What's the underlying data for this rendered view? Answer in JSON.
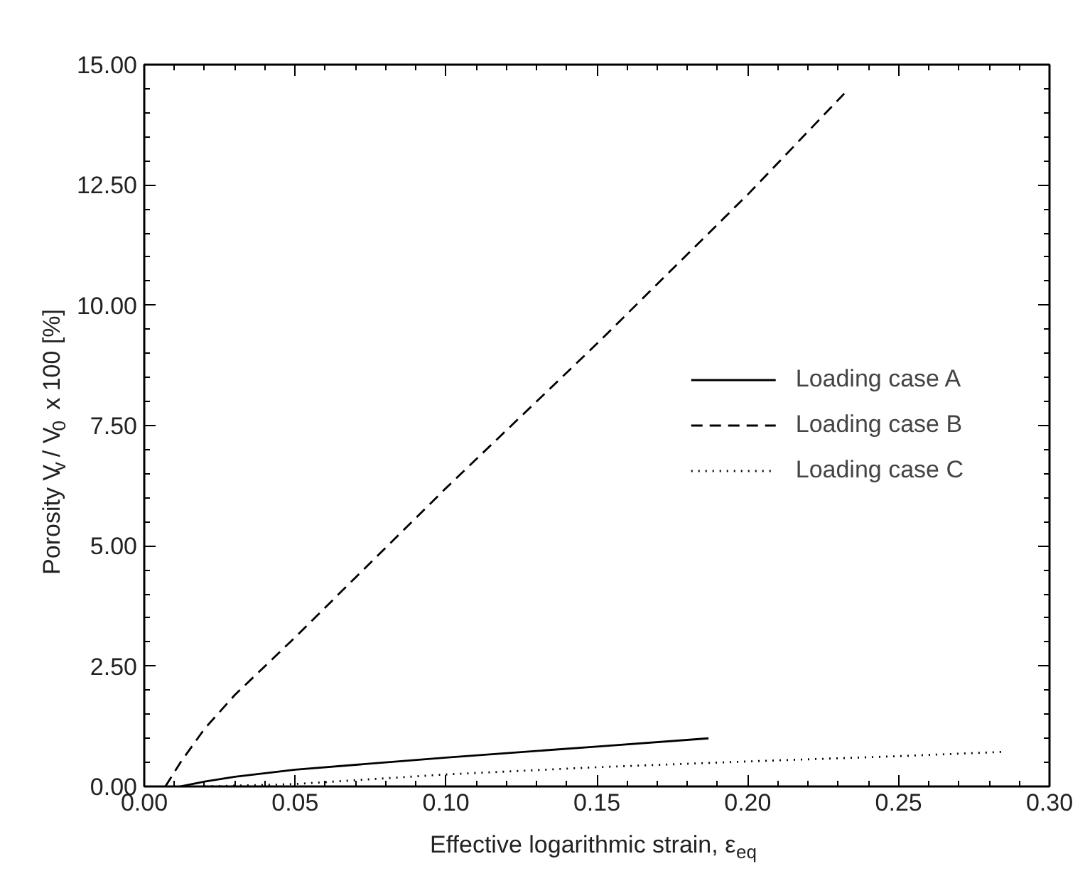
{
  "chart_data": {
    "type": "line",
    "xlabel": "Effective logarithmic strain, ε$_{eq}$",
    "ylabel": "Porosity  V$_{v}$ / V$_{0}$  x 100 [%]",
    "xlim": [
      0,
      0.3
    ],
    "ylim": [
      0,
      15
    ],
    "xticks": [
      {
        "value": 0,
        "label": "0.00"
      },
      {
        "value": 0.05,
        "label": "0.05"
      },
      {
        "value": 0.1,
        "label": "0.10"
      },
      {
        "value": 0.15,
        "label": "0.15"
      },
      {
        "value": 0.2,
        "label": "0.20"
      },
      {
        "value": 0.25,
        "label": "0.25"
      },
      {
        "value": 0.3,
        "label": "0.30"
      }
    ],
    "yticks": [
      {
        "value": 0,
        "label": "0.00"
      },
      {
        "value": 2.5,
        "label": "2.50"
      },
      {
        "value": 5,
        "label": "5.00"
      },
      {
        "value": 7.5,
        "label": "7.50"
      },
      {
        "value": 10,
        "label": "10.00"
      },
      {
        "value": 12.5,
        "label": "12.50"
      },
      {
        "value": 15,
        "label": "15.00"
      }
    ],
    "grid": false,
    "legend": "right",
    "marker": "none",
    "series": [
      {
        "name": "Loading case A",
        "color": "#000000",
        "line_style": "solid",
        "x": [
          0.012,
          0.02,
          0.03,
          0.05,
          0.1,
          0.15,
          0.187
        ],
        "values": [
          0,
          0.1,
          0.2,
          0.35,
          0.6,
          0.83,
          1.0
        ]
      },
      {
        "name": "Loading case B",
        "color": "#000000",
        "line_style": "dashed",
        "x": [
          0.007,
          0.012,
          0.02,
          0.03,
          0.05,
          0.1,
          0.15,
          0.2,
          0.232
        ],
        "values": [
          0,
          0.5,
          1.2,
          1.9,
          3.1,
          6.2,
          9.2,
          12.3,
          14.4
        ]
      },
      {
        "name": "Loading case C",
        "color": "#000000",
        "line_style": "dotted",
        "x": [
          0.02,
          0.05,
          0.1,
          0.15,
          0.2,
          0.25,
          0.285
        ],
        "values": [
          0,
          0.05,
          0.25,
          0.4,
          0.52,
          0.63,
          0.72
        ]
      }
    ]
  }
}
